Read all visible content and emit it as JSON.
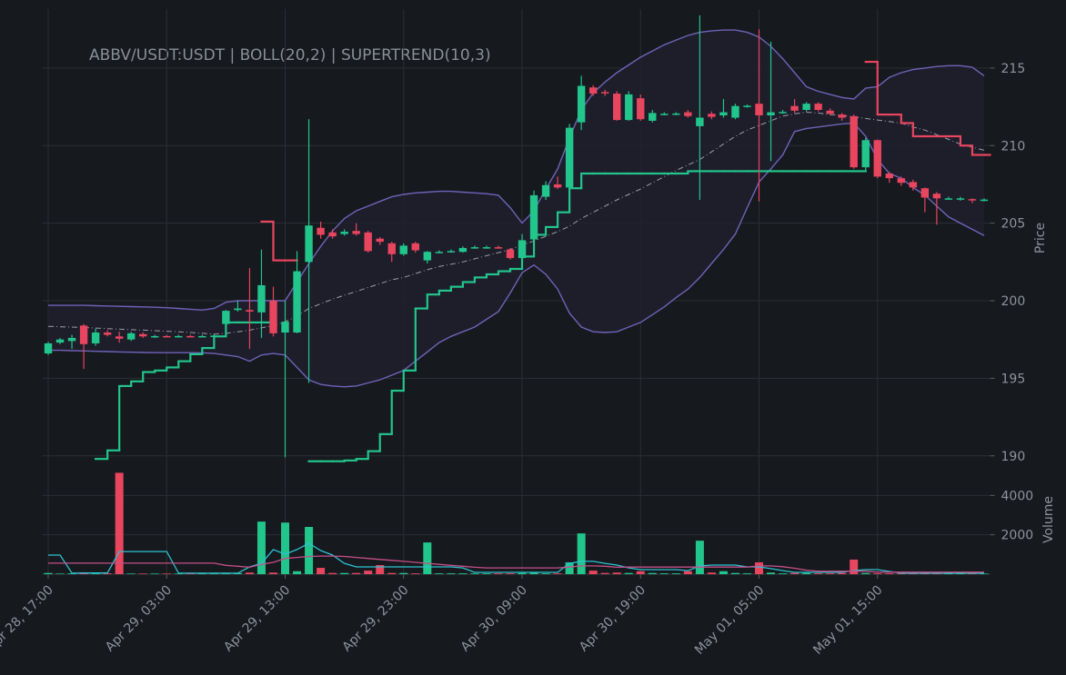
{
  "chart_data": {
    "type": "candlestick",
    "title": "ABBV/USDT:USDT | BOLL(20,2) | SUPERTREND(10,3)",
    "categories": [
      "Apr 28, 17:00",
      null,
      null,
      null,
      null,
      null,
      null,
      null,
      null,
      null,
      "Apr 29, 03:00",
      null,
      null,
      null,
      null,
      null,
      null,
      null,
      null,
      null,
      "Apr 29, 13:00",
      null,
      null,
      null,
      null,
      null,
      null,
      null,
      null,
      null,
      "Apr 29, 23:00",
      null,
      null,
      null,
      null,
      null,
      null,
      null,
      null,
      null,
      "Apr 30, 09:00",
      null,
      null,
      null,
      null,
      null,
      null,
      null,
      null,
      null,
      "Apr 30, 19:00",
      null,
      null,
      null,
      null,
      null,
      null,
      null,
      null,
      null,
      "May 01, 05:00",
      null,
      null,
      null,
      null,
      null,
      null,
      null,
      null,
      null,
      "May 01, 15:00",
      null,
      null,
      null,
      null,
      null,
      null,
      null,
      null,
      null
    ],
    "open": [
      196.6,
      197.3,
      197.4,
      198.4,
      197.25,
      197.95,
      197.7,
      197.5,
      197.85,
      197.7,
      197.72,
      197.7,
      197.72,
      197.7,
      197.72,
      198.5,
      199.4,
      199.4,
      199.25,
      200.0,
      197.95,
      197.95,
      202.5,
      204.7,
      204.4,
      204.3,
      204.5,
      204.4,
      204.0,
      203.7,
      203.0,
      203.7,
      202.6,
      203.15,
      203.15,
      203.15,
      203.45,
      203.45,
      203.45,
      203.3,
      202.75,
      203.95,
      206.7,
      207.5,
      207.3,
      211.5,
      213.75,
      213.45,
      213.35,
      211.65,
      213.05,
      211.6,
      212.05,
      212.05,
      212.15,
      211.25,
      212.05,
      211.95,
      211.8,
      212.55,
      212.7,
      211.95,
      212.15,
      212.55,
      212.3,
      212.7,
      212.25,
      212.0,
      211.9,
      208.6,
      210.35,
      208.2,
      207.9,
      207.65,
      207.25,
      206.9,
      206.6,
      206.55,
      206.55,
      206.5
    ],
    "high": [
      197.35,
      197.6,
      197.8,
      198.5,
      198.2,
      198.1,
      198.0,
      198.0,
      197.95,
      197.8,
      197.8,
      197.8,
      197.8,
      197.8,
      197.85,
      199.4,
      200.0,
      202.1,
      203.3,
      200.9,
      200.0,
      203.2,
      211.7,
      205.1,
      204.6,
      204.6,
      205.0,
      204.5,
      204.1,
      203.8,
      203.7,
      203.8,
      203.2,
      203.25,
      203.3,
      203.5,
      203.55,
      203.55,
      203.55,
      203.4,
      204.3,
      207.1,
      207.7,
      208.0,
      211.4,
      214.5,
      213.9,
      213.6,
      213.5,
      213.5,
      213.3,
      212.3,
      212.15,
      212.15,
      212.3,
      218.4,
      212.2,
      213.0,
      212.7,
      212.65,
      217.5,
      216.7,
      212.3,
      213.0,
      212.8,
      212.8,
      212.4,
      212.1,
      212.0,
      210.5,
      210.4,
      208.3,
      208.0,
      207.8,
      207.3,
      207.0,
      206.7,
      206.7,
      206.6,
      206.6
    ],
    "low": [
      196.5,
      197.2,
      196.9,
      195.6,
      197.1,
      197.7,
      197.3,
      197.4,
      197.6,
      197.6,
      197.65,
      197.65,
      197.65,
      197.65,
      197.65,
      198.3,
      199.3,
      196.9,
      197.6,
      197.7,
      189.9,
      197.9,
      194.7,
      204.0,
      204.0,
      204.2,
      204.2,
      203.1,
      203.6,
      202.5,
      202.9,
      203.1,
      202.4,
      203.05,
      203.1,
      203.1,
      203.35,
      203.35,
      203.35,
      202.65,
      202.7,
      203.5,
      206.5,
      207.2,
      207.2,
      211.0,
      213.2,
      213.2,
      211.6,
      211.6,
      211.6,
      211.5,
      211.95,
      211.95,
      211.8,
      206.5,
      211.7,
      211.8,
      211.7,
      212.45,
      206.4,
      209.0,
      212.05,
      212.1,
      212.2,
      212.2,
      211.95,
      211.6,
      208.5,
      208.4,
      207.9,
      207.6,
      207.4,
      207.1,
      205.7,
      204.9,
      206.5,
      206.45,
      206.3,
      206.4
    ],
    "close": [
      197.25,
      197.5,
      197.6,
      197.2,
      197.95,
      197.8,
      197.55,
      197.9,
      197.7,
      197.72,
      197.7,
      197.72,
      197.7,
      197.72,
      197.75,
      199.35,
      199.5,
      199.3,
      201.0,
      197.9,
      198.65,
      201.9,
      204.85,
      204.25,
      204.15,
      204.45,
      204.3,
      203.2,
      203.8,
      203.0,
      203.55,
      203.25,
      203.15,
      203.15,
      203.2,
      203.4,
      203.45,
      203.45,
      203.42,
      202.75,
      203.9,
      206.8,
      207.45,
      207.3,
      211.15,
      213.85,
      213.35,
      213.4,
      211.65,
      213.3,
      211.7,
      212.1,
      212.05,
      212.07,
      211.9,
      211.8,
      211.85,
      212.15,
      212.55,
      212.57,
      211.95,
      212.15,
      212.17,
      212.25,
      212.7,
      212.3,
      212.05,
      211.8,
      208.6,
      210.35,
      208.0,
      207.9,
      207.6,
      207.3,
      206.65,
      206.6,
      206.6,
      206.6,
      206.5,
      206.52
    ],
    "up_color": "#22c58b",
    "down_color": "#e8455e",
    "ylabel": "Price",
    "ylim": [
      189.4,
      218.8
    ],
    "yticks": [
      190,
      195,
      200,
      205,
      210,
      215
    ],
    "bollinger": {
      "color": "#7062b8",
      "fill": "#1f1f2d",
      "middle_color": "#9c9ca8",
      "upper": [
        199.7,
        199.7,
        199.7,
        199.7,
        199.68,
        199.66,
        199.64,
        199.62,
        199.6,
        199.58,
        199.55,
        199.5,
        199.45,
        199.4,
        199.5,
        199.9,
        200.0,
        200.0,
        200.0,
        200.0,
        200.0,
        201.2,
        202.4,
        203.5,
        204.5,
        205.3,
        205.8,
        206.1,
        206.4,
        206.7,
        206.85,
        206.95,
        207.0,
        207.05,
        207.05,
        207.0,
        206.95,
        206.9,
        206.8,
        206.0,
        205.0,
        205.8,
        207.2,
        208.5,
        210.5,
        212.3,
        213.4,
        214.1,
        214.7,
        215.2,
        215.7,
        216.1,
        216.5,
        216.8,
        217.1,
        217.3,
        217.4,
        217.45,
        217.45,
        217.3,
        217.0,
        216.4,
        215.6,
        214.7,
        213.8,
        213.5,
        213.3,
        213.1,
        213.0,
        213.7,
        213.8,
        214.4,
        214.7,
        214.9,
        215.0,
        215.1,
        215.15,
        215.15,
        215.05,
        214.5
      ],
      "middle": [
        198.35,
        198.32,
        198.3,
        198.27,
        198.24,
        198.2,
        198.17,
        198.13,
        198.1,
        198.07,
        198.03,
        198.0,
        197.95,
        197.9,
        197.85,
        197.9,
        198.0,
        198.1,
        198.25,
        198.4,
        198.65,
        199.0,
        199.5,
        199.8,
        200.1,
        200.35,
        200.6,
        200.85,
        201.1,
        201.35,
        201.5,
        201.75,
        202.0,
        202.2,
        202.35,
        202.5,
        202.7,
        202.9,
        203.1,
        203.3,
        203.6,
        203.85,
        204.15,
        204.45,
        204.8,
        205.3,
        205.7,
        206.1,
        206.5,
        206.85,
        207.2,
        207.6,
        208.0,
        208.4,
        208.75,
        209.1,
        209.6,
        210.1,
        210.6,
        211.0,
        211.3,
        211.6,
        211.9,
        212.05,
        212.15,
        212.1,
        212.0,
        211.95,
        211.85,
        211.75,
        211.65,
        211.55,
        211.45,
        211.2,
        211.0,
        210.7,
        210.4,
        210.1,
        209.9,
        209.7
      ],
      "lower": [
        196.8,
        196.8,
        196.78,
        196.76,
        196.74,
        196.72,
        196.7,
        196.68,
        196.66,
        196.65,
        196.65,
        196.65,
        196.65,
        196.64,
        196.6,
        196.5,
        196.4,
        196.1,
        196.5,
        196.6,
        196.5,
        195.7,
        194.9,
        194.6,
        194.5,
        194.45,
        194.5,
        194.7,
        194.9,
        195.2,
        195.5,
        196.1,
        196.7,
        197.3,
        197.7,
        198.0,
        198.3,
        198.8,
        199.3,
        200.5,
        201.8,
        202.3,
        201.7,
        200.75,
        199.2,
        198.3,
        198.0,
        197.95,
        198.0,
        198.3,
        198.6,
        199.1,
        199.6,
        200.2,
        200.75,
        201.5,
        202.4,
        203.3,
        204.3,
        206.0,
        207.65,
        208.5,
        209.4,
        210.9,
        211.1,
        211.2,
        211.3,
        211.4,
        211.45,
        210.6,
        209.1,
        208.2,
        207.9,
        207.3,
        206.8,
        206.1,
        205.4,
        205.0,
        204.6,
        204.2
      ]
    },
    "supertrend": {
      "up": [
        null,
        null,
        null,
        null,
        189.8,
        190.35,
        194.5,
        194.8,
        195.4,
        195.5,
        195.7,
        196.1,
        196.55,
        196.95,
        197.7,
        198.6,
        198.6,
        198.6,
        198.6,
        null,
        null,
        null,
        189.65,
        189.65,
        189.65,
        189.7,
        189.8,
        190.3,
        191.4,
        194.2,
        195.5,
        199.5,
        200.4,
        200.65,
        200.9,
        201.2,
        201.5,
        201.7,
        201.9,
        202.05,
        202.85,
        204.25,
        204.75,
        205.7,
        207.25,
        208.2,
        208.2,
        208.2,
        208.2,
        208.2,
        208.2,
        208.2,
        208.2,
        208.2,
        208.35,
        208.35,
        208.35,
        208.35,
        208.35,
        208.35,
        208.35,
        208.35,
        208.35,
        208.35,
        208.35,
        208.35,
        208.35,
        208.35,
        208.35,
        null,
        null,
        null,
        null,
        null,
        null,
        null,
        null,
        null,
        null,
        null
      ],
      "down": [
        null,
        null,
        null,
        null,
        null,
        null,
        null,
        null,
        null,
        null,
        null,
        null,
        null,
        null,
        null,
        null,
        null,
        null,
        205.1,
        202.6,
        202.6,
        null,
        null,
        null,
        null,
        null,
        null,
        null,
        null,
        null,
        null,
        null,
        null,
        null,
        null,
        null,
        null,
        null,
        null,
        null,
        null,
        null,
        null,
        null,
        null,
        null,
        null,
        null,
        null,
        null,
        null,
        null,
        null,
        null,
        null,
        null,
        null,
        null,
        null,
        null,
        null,
        null,
        null,
        null,
        null,
        null,
        null,
        null,
        null,
        215.4,
        212.0,
        212.0,
        211.45,
        210.6,
        210.6,
        210.6,
        210.6,
        210.0,
        209.4,
        209.4
      ]
    },
    "volume": {
      "ylabel": "Volume",
      "ylim": [
        0,
        5400
      ],
      "yticks": [
        2000,
        4000
      ],
      "values": [
        60,
        30,
        40,
        50,
        40,
        40,
        5150,
        30,
        30,
        30,
        30,
        30,
        30,
        30,
        30,
        60,
        60,
        80,
        2670,
        80,
        2620,
        150,
        2400,
        320,
        60,
        60,
        60,
        180,
        460,
        60,
        60,
        40,
        1610,
        40,
        40,
        40,
        40,
        40,
        40,
        40,
        60,
        80,
        40,
        40,
        600,
        2070,
        180,
        60,
        80,
        60,
        150,
        60,
        40,
        40,
        150,
        1700,
        80,
        150,
        60,
        40,
        600,
        80,
        40,
        60,
        60,
        40,
        40,
        60,
        740,
        60,
        40,
        40,
        40,
        40,
        40,
        40,
        40,
        40,
        40,
        30
      ],
      "lines": [
        {
          "color": "#2cc3d3",
          "values": [
            970,
            970,
            50,
            60,
            60,
            60,
            1150,
            1150,
            1150,
            1150,
            1150,
            50,
            50,
            50,
            50,
            50,
            50,
            370,
            550,
            1250,
            1010,
            1250,
            1570,
            1200,
            970,
            550,
            370,
            370,
            370,
            370,
            370,
            370,
            370,
            370,
            370,
            320,
            90,
            90,
            90,
            90,
            90,
            90,
            90,
            90,
            550,
            650,
            650,
            550,
            460,
            320,
            230,
            230,
            230,
            230,
            180,
            415,
            460,
            460,
            460,
            370,
            370,
            280,
            180,
            90,
            90,
            90,
            90,
            90,
            180,
            230,
            230,
            140,
            50,
            50,
            50,
            50,
            50,
            50,
            50,
            50
          ]
        },
        {
          "color": "#c4508a",
          "values": [
            560,
            560,
            560,
            560,
            560,
            560,
            560,
            560,
            560,
            560,
            560,
            560,
            560,
            560,
            560,
            450,
            400,
            350,
            500,
            600,
            800,
            850,
            900,
            920,
            920,
            900,
            850,
            800,
            750,
            700,
            650,
            600,
            550,
            500,
            450,
            400,
            350,
            320,
            320,
            320,
            320,
            320,
            320,
            320,
            360,
            420,
            420,
            400,
            350,
            360,
            360,
            360,
            360,
            360,
            360,
            360,
            360,
            360,
            360,
            360,
            420,
            420,
            380,
            300,
            200,
            150,
            150,
            150,
            150,
            150,
            100,
            100,
            100,
            100,
            100,
            100,
            100,
            100,
            100,
            100
          ]
        }
      ]
    }
  }
}
